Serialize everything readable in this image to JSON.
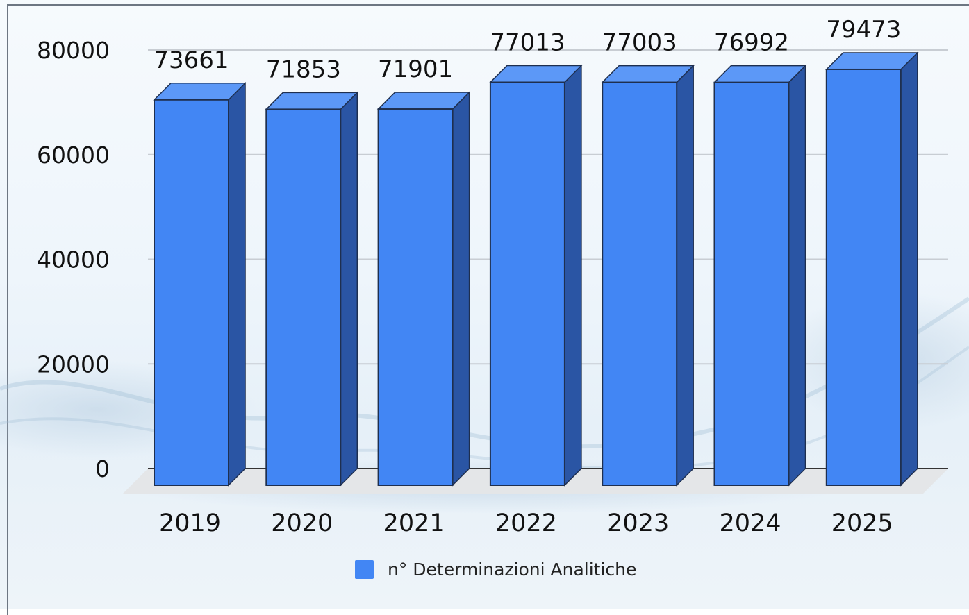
{
  "chart_data": {
    "type": "bar",
    "categories": [
      "2019",
      "2020",
      "2021",
      "2022",
      "2023",
      "2024",
      "2025"
    ],
    "series": [
      {
        "name": "n° Determinazioni Analitiche",
        "values": [
          73661,
          71853,
          71901,
          77013,
          77003,
          76992,
          79473
        ],
        "data_labels": [
          "73661",
          "71853",
          "71901",
          "77013",
          "77003",
          "76992",
          "79473"
        ]
      }
    ],
    "y_ticks": [
      "0",
      "20000",
      "40000",
      "60000",
      "80000"
    ],
    "ylim": [
      0,
      80000
    ],
    "grid": true,
    "legend_position": "bottom",
    "style": "3d-bar",
    "colors": {
      "bar_front": "#4286f4",
      "bar_top": "#5c98f7",
      "bar_side": "#2a55a4",
      "grid": "#c8cdd3",
      "floor": "#e4e6e8"
    }
  },
  "legend": {
    "label": "n° Determinazioni Analitiche"
  }
}
